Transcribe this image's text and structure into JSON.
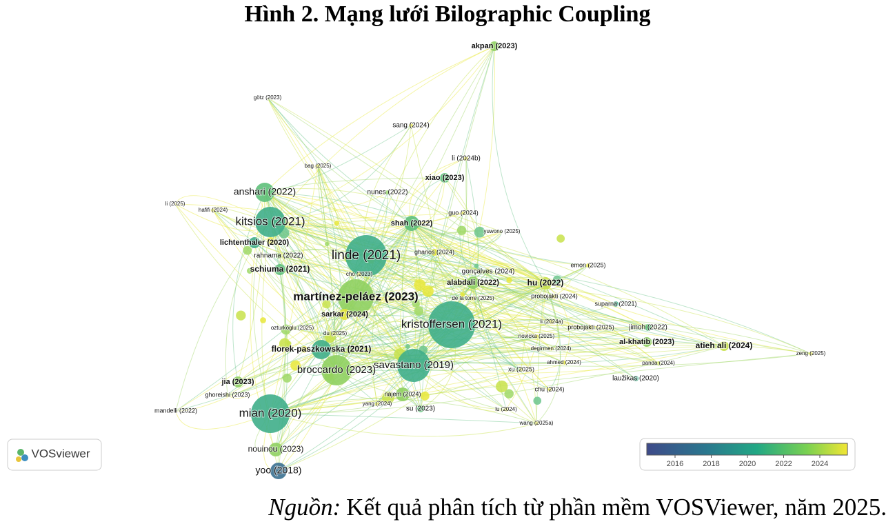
{
  "header": {
    "title": "Hình 2. Mạng lưới Bilographic Coupling"
  },
  "nodes": [
    {
      "label": "akpan (2023)"
    },
    {
      "label": "götz (2023)"
    },
    {
      "label": "sang (2024)"
    },
    {
      "label": "li (2024b)"
    },
    {
      "label": "bag (2025)"
    },
    {
      "label": "xiao (2023)"
    },
    {
      "label": "anshari (2022)"
    },
    {
      "label": "nunes (2022)"
    },
    {
      "label": "li (2025)"
    },
    {
      "label": "hafifi (2024)"
    },
    {
      "label": "guo (2024)"
    },
    {
      "label": "kitsios (2021)"
    },
    {
      "label": "shah (2022)"
    },
    {
      "label": "yuwono (2025)"
    },
    {
      "label": "lichtenthaler (2020)"
    },
    {
      "label": "gharios (2024)"
    },
    {
      "label": "linde (2021)"
    },
    {
      "label": "rahnama (2022)"
    },
    {
      "label": "emon (2025)"
    },
    {
      "label": "schiuma (2021)"
    },
    {
      "label": "gonçalves (2024)"
    },
    {
      "label": "cho (2023)"
    },
    {
      "label": "alabdali (2022)"
    },
    {
      "label": "hu (2022)"
    },
    {
      "label": "probojakti (2024)"
    },
    {
      "label": "martínez-peláez (2023)"
    },
    {
      "label": "de la torre (2025)"
    },
    {
      "label": "suparna (2021)"
    },
    {
      "label": "sarkar (2024)"
    },
    {
      "label": "li (2024a)"
    },
    {
      "label": "kristoffersen (2021)"
    },
    {
      "label": "ozturkoglu (2025)"
    },
    {
      "label": "probojakti (2025)"
    },
    {
      "label": "jimoh (2022)"
    },
    {
      "label": "du (2025)"
    },
    {
      "label": "novicka (2025)"
    },
    {
      "label": "al-khatib (2023)"
    },
    {
      "label": "atieh ali (2024)"
    },
    {
      "label": "florek-paszkowska (2021)"
    },
    {
      "label": "degirmen (2024)"
    },
    {
      "label": "zeng (2025)"
    },
    {
      "label": "ahmed (2024)"
    },
    {
      "label": "panda (2024)"
    },
    {
      "label": "savastano (2019)"
    },
    {
      "label": "broccardo (2023)"
    },
    {
      "label": "xu (2025)"
    },
    {
      "label": "laužikas (2020)"
    },
    {
      "label": "jia (2023)"
    },
    {
      "label": "chu (2024)"
    },
    {
      "label": "ghoreishi (2023)"
    },
    {
      "label": "najem (2024)"
    },
    {
      "label": "yang (2024)"
    },
    {
      "label": "su (2023)"
    },
    {
      "label": "lu (2024)"
    },
    {
      "label": "mandelli (2022)"
    },
    {
      "label": "mian (2020)"
    },
    {
      "label": "wang (2025a)"
    },
    {
      "label": "nouinou (2023)"
    },
    {
      "label": "yoo (2018)"
    }
  ],
  "logo": {
    "label": "VOSviewer"
  },
  "colorbar": {
    "ticks": [
      "2016",
      "2018",
      "2020",
      "2022",
      "2024"
    ]
  },
  "caption": {
    "source_label": "Nguồn:",
    "text": "Kết quả phân tích từ phần mềm VOSViewer, năm 2025."
  }
}
